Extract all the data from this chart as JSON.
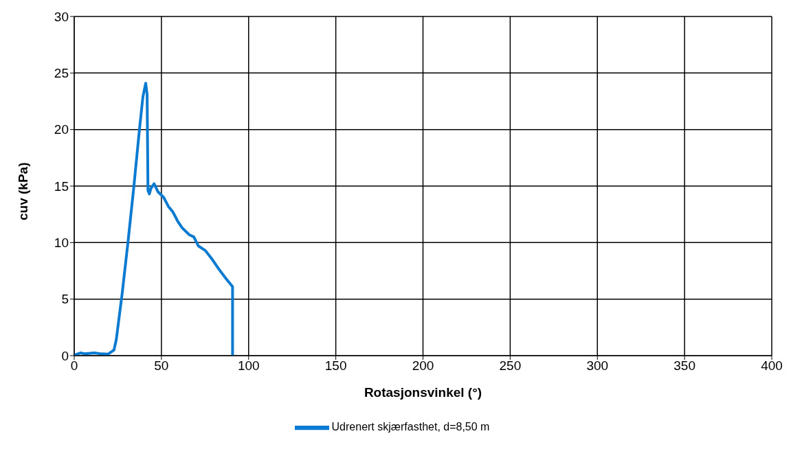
{
  "chart_data": {
    "type": "line",
    "xlabel": "Rotasjonsvinkel (°)",
    "ylabel": "cuv (kPa)",
    "x": [
      0,
      0.9,
      3.6,
      6.2,
      11.5,
      15.5,
      19.5,
      22.8,
      24.1,
      27.5,
      30.8,
      34.1,
      37.4,
      39.4,
      41,
      41.8,
      42.3,
      43.1,
      44,
      45.8,
      48,
      51.3,
      54,
      56.6,
      59.3,
      61.9,
      65.9,
      68.6,
      71.2,
      75.2,
      79.2,
      83.2,
      87.1,
      90.8,
      90.8
    ],
    "series": [
      {
        "name": "Udrenert skjærfasthet, d=8,50 m",
        "color": "#0a7bd0",
        "values": [
          0,
          0.1,
          0.24,
          0.16,
          0.24,
          0.16,
          0.14,
          0.5,
          1.4,
          5.5,
          10,
          14.8,
          20,
          22.9,
          24.1,
          23.1,
          14.6,
          14.3,
          14.8,
          15.2,
          14.5,
          14,
          13.2,
          12.7,
          11.9,
          11.3,
          10.7,
          10.5,
          9.7,
          9.3,
          8.5,
          7.6,
          6.8,
          6.1,
          0
        ]
      }
    ],
    "xlim": [
      0,
      400
    ],
    "xticks": [
      0,
      50,
      100,
      150,
      200,
      250,
      300,
      350,
      400
    ],
    "ylim": [
      0,
      30
    ],
    "yticks": [
      0,
      5,
      10,
      15,
      20,
      25,
      30
    ],
    "grid": true,
    "legend": "bottom",
    "marker": "none",
    "line_style": "solid"
  }
}
